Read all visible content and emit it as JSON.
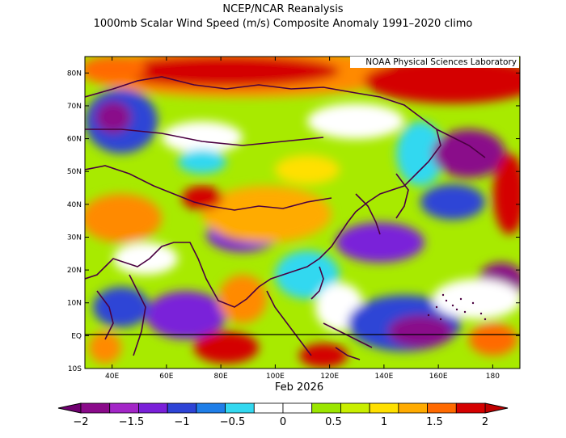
{
  "title_line1": "NCEP/NCAR Reanalysis",
  "title_line2": "1000mb Scalar Wind Speed (m/s) Composite Anomaly 1991–2020 climo",
  "credit": "NOAA Physical Sciences Laboratory",
  "date_label": "Feb 2026",
  "lat_ticks": [
    "80N",
    "70N",
    "60N",
    "50N",
    "40N",
    "30N",
    "20N",
    "10N",
    "EQ",
    "10S"
  ],
  "lon_ticks": [
    "40E",
    "60E",
    "80E",
    "100E",
    "120E",
    "140E",
    "160E",
    "180"
  ],
  "colorbar": {
    "labels": [
      "−2",
      "−1.5",
      "−1",
      "−0.5",
      "0",
      "0.5",
      "1",
      "1.5",
      "2"
    ],
    "colors": [
      "#8a0a8a",
      "#a326c7",
      "#7a20d9",
      "#2e44d6",
      "#1f7ee8",
      "#33d8f0",
      "#ffffff",
      "#ffffff",
      "#9be600",
      "#c9ef00",
      "#ffe000",
      "#ffab00",
      "#ff6a00",
      "#d50000"
    ],
    "under_color": "#700070",
    "over_color": "#c00000"
  }
}
